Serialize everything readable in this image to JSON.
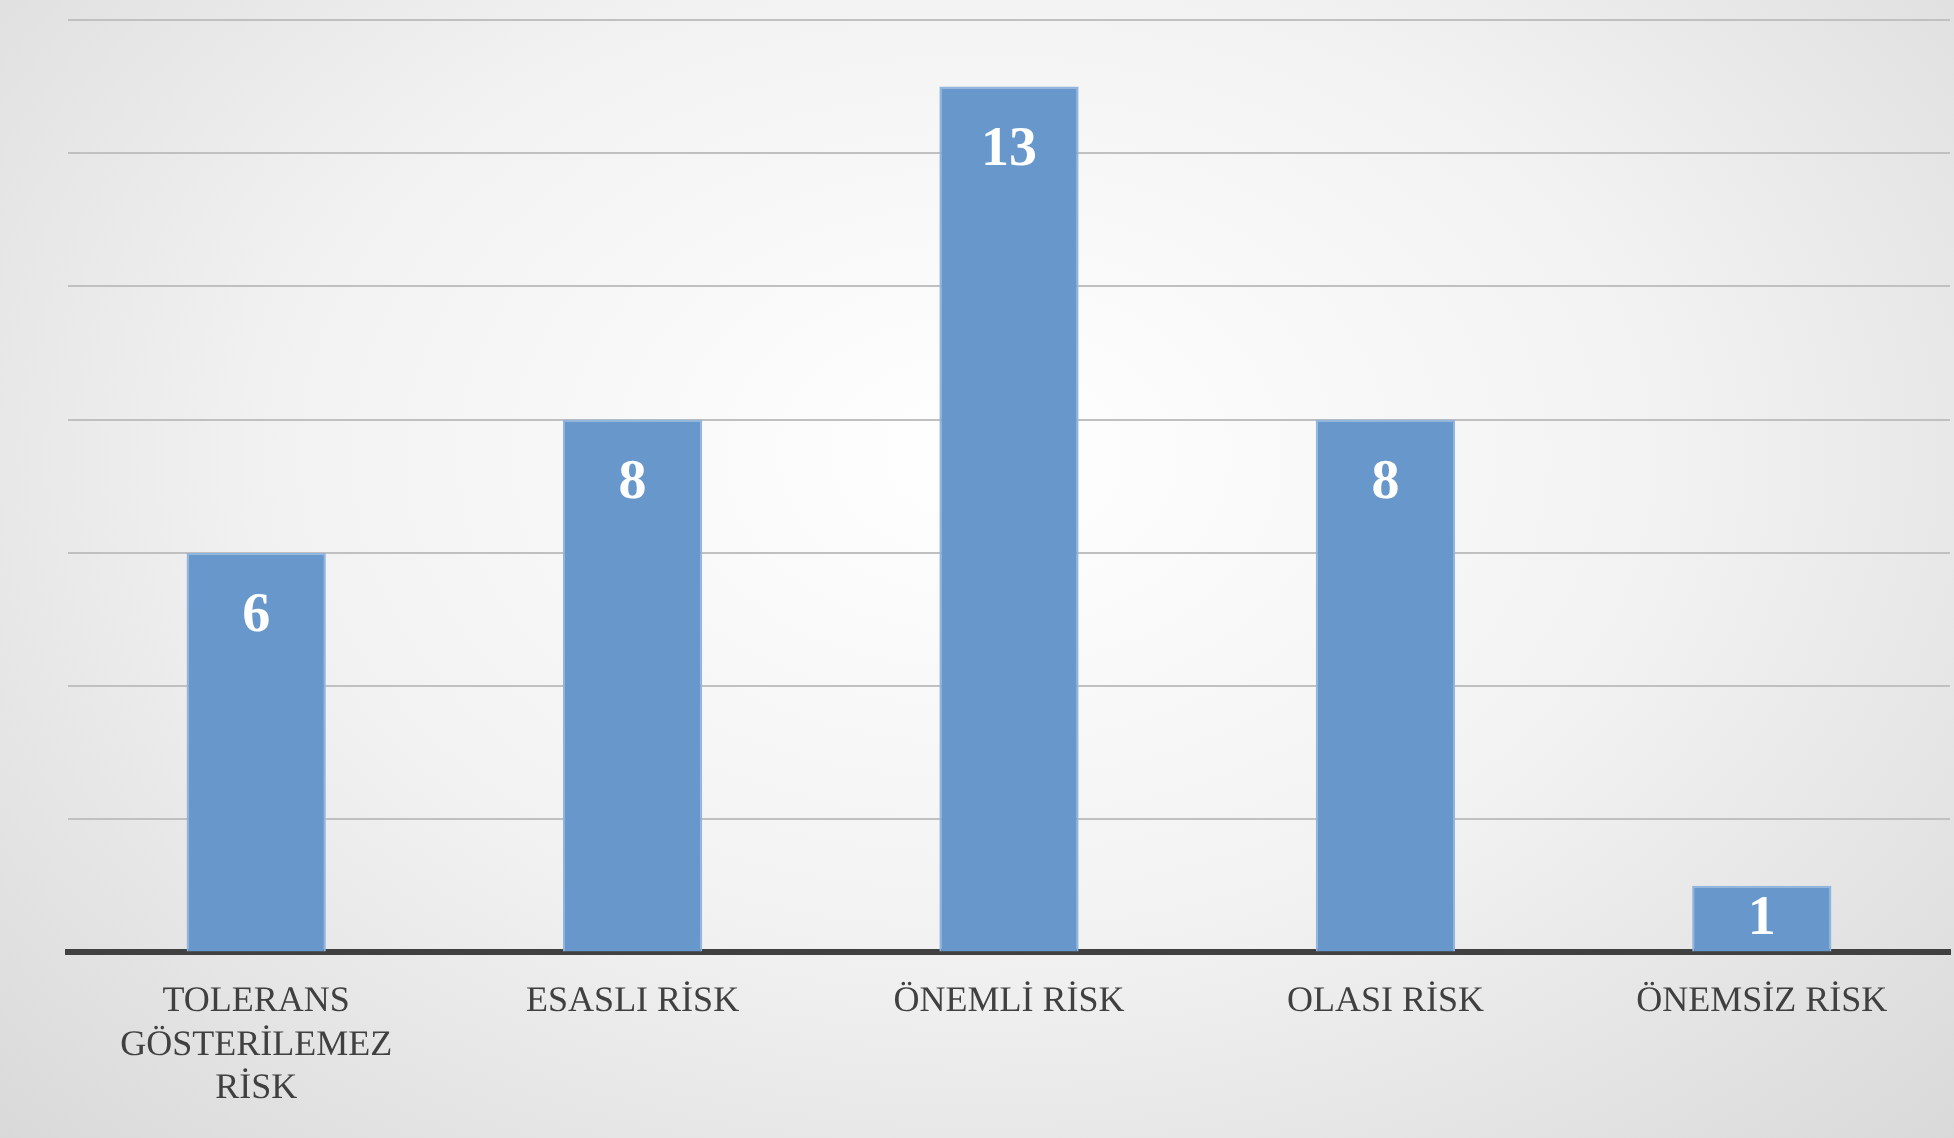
{
  "chart_data": {
    "type": "bar",
    "categories": [
      "TOLERANS GÖSTERİLEMEZ RİSK",
      "ESASLI RİSK",
      "ÖNEMLİ RİSK",
      "OLASI RİSK",
      "ÖNEMSİZ RİSK"
    ],
    "values": [
      6,
      8,
      13,
      8,
      1
    ],
    "color": "#6897cb",
    "ylim": [
      0,
      14
    ],
    "yticks": [
      0,
      2,
      4,
      6,
      8,
      10,
      12,
      14
    ],
    "grid": "y",
    "tick_labels": "x",
    "data_labels": true
  }
}
